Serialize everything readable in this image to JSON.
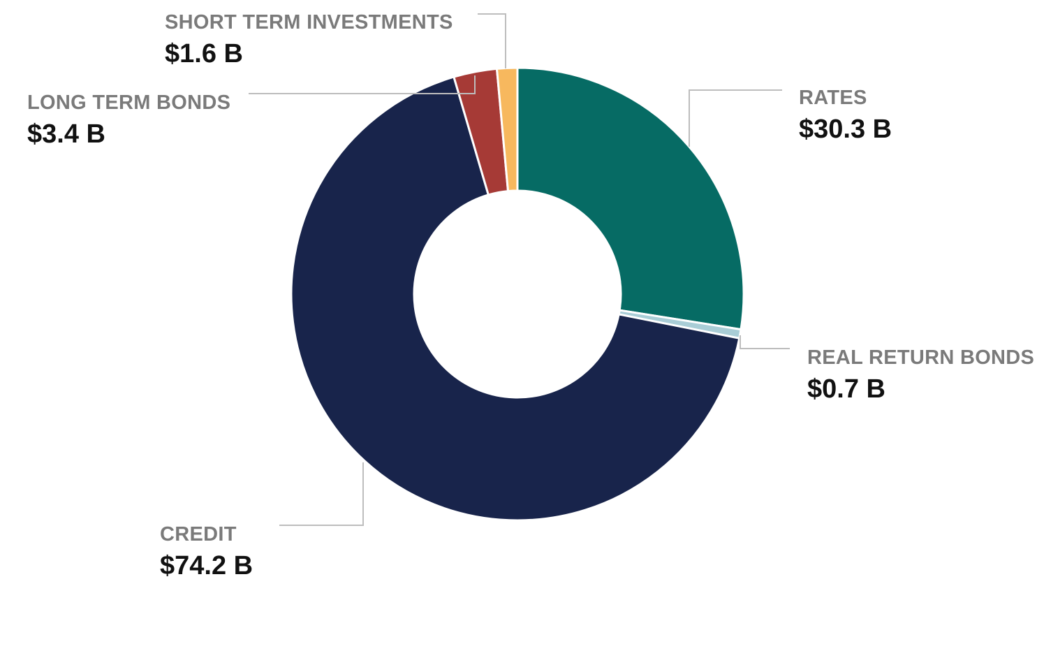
{
  "chart_data": {
    "type": "pie",
    "variant": "donut",
    "unit": "$ B",
    "slices": [
      {
        "label": "RATES",
        "value": 30.3,
        "value_label": "$30.3 B",
        "color": "#066b64"
      },
      {
        "label": "REAL RETURN BONDS",
        "value": 0.7,
        "value_label": "$0.7 B",
        "color": "#a9cdd6"
      },
      {
        "label": "CREDIT",
        "value": 74.2,
        "value_label": "$74.2 B",
        "color": "#18244b"
      },
      {
        "label": "LONG TERM BONDS",
        "value": 3.4,
        "value_label": "$3.4 B",
        "color": "#a63a36"
      },
      {
        "label": "SHORT TERM INVESTMENTS",
        "value": 1.6,
        "value_label": "$1.6 B",
        "color": "#f7b85e"
      }
    ],
    "legend": "none",
    "labels": "outside-with-leader-lines"
  }
}
